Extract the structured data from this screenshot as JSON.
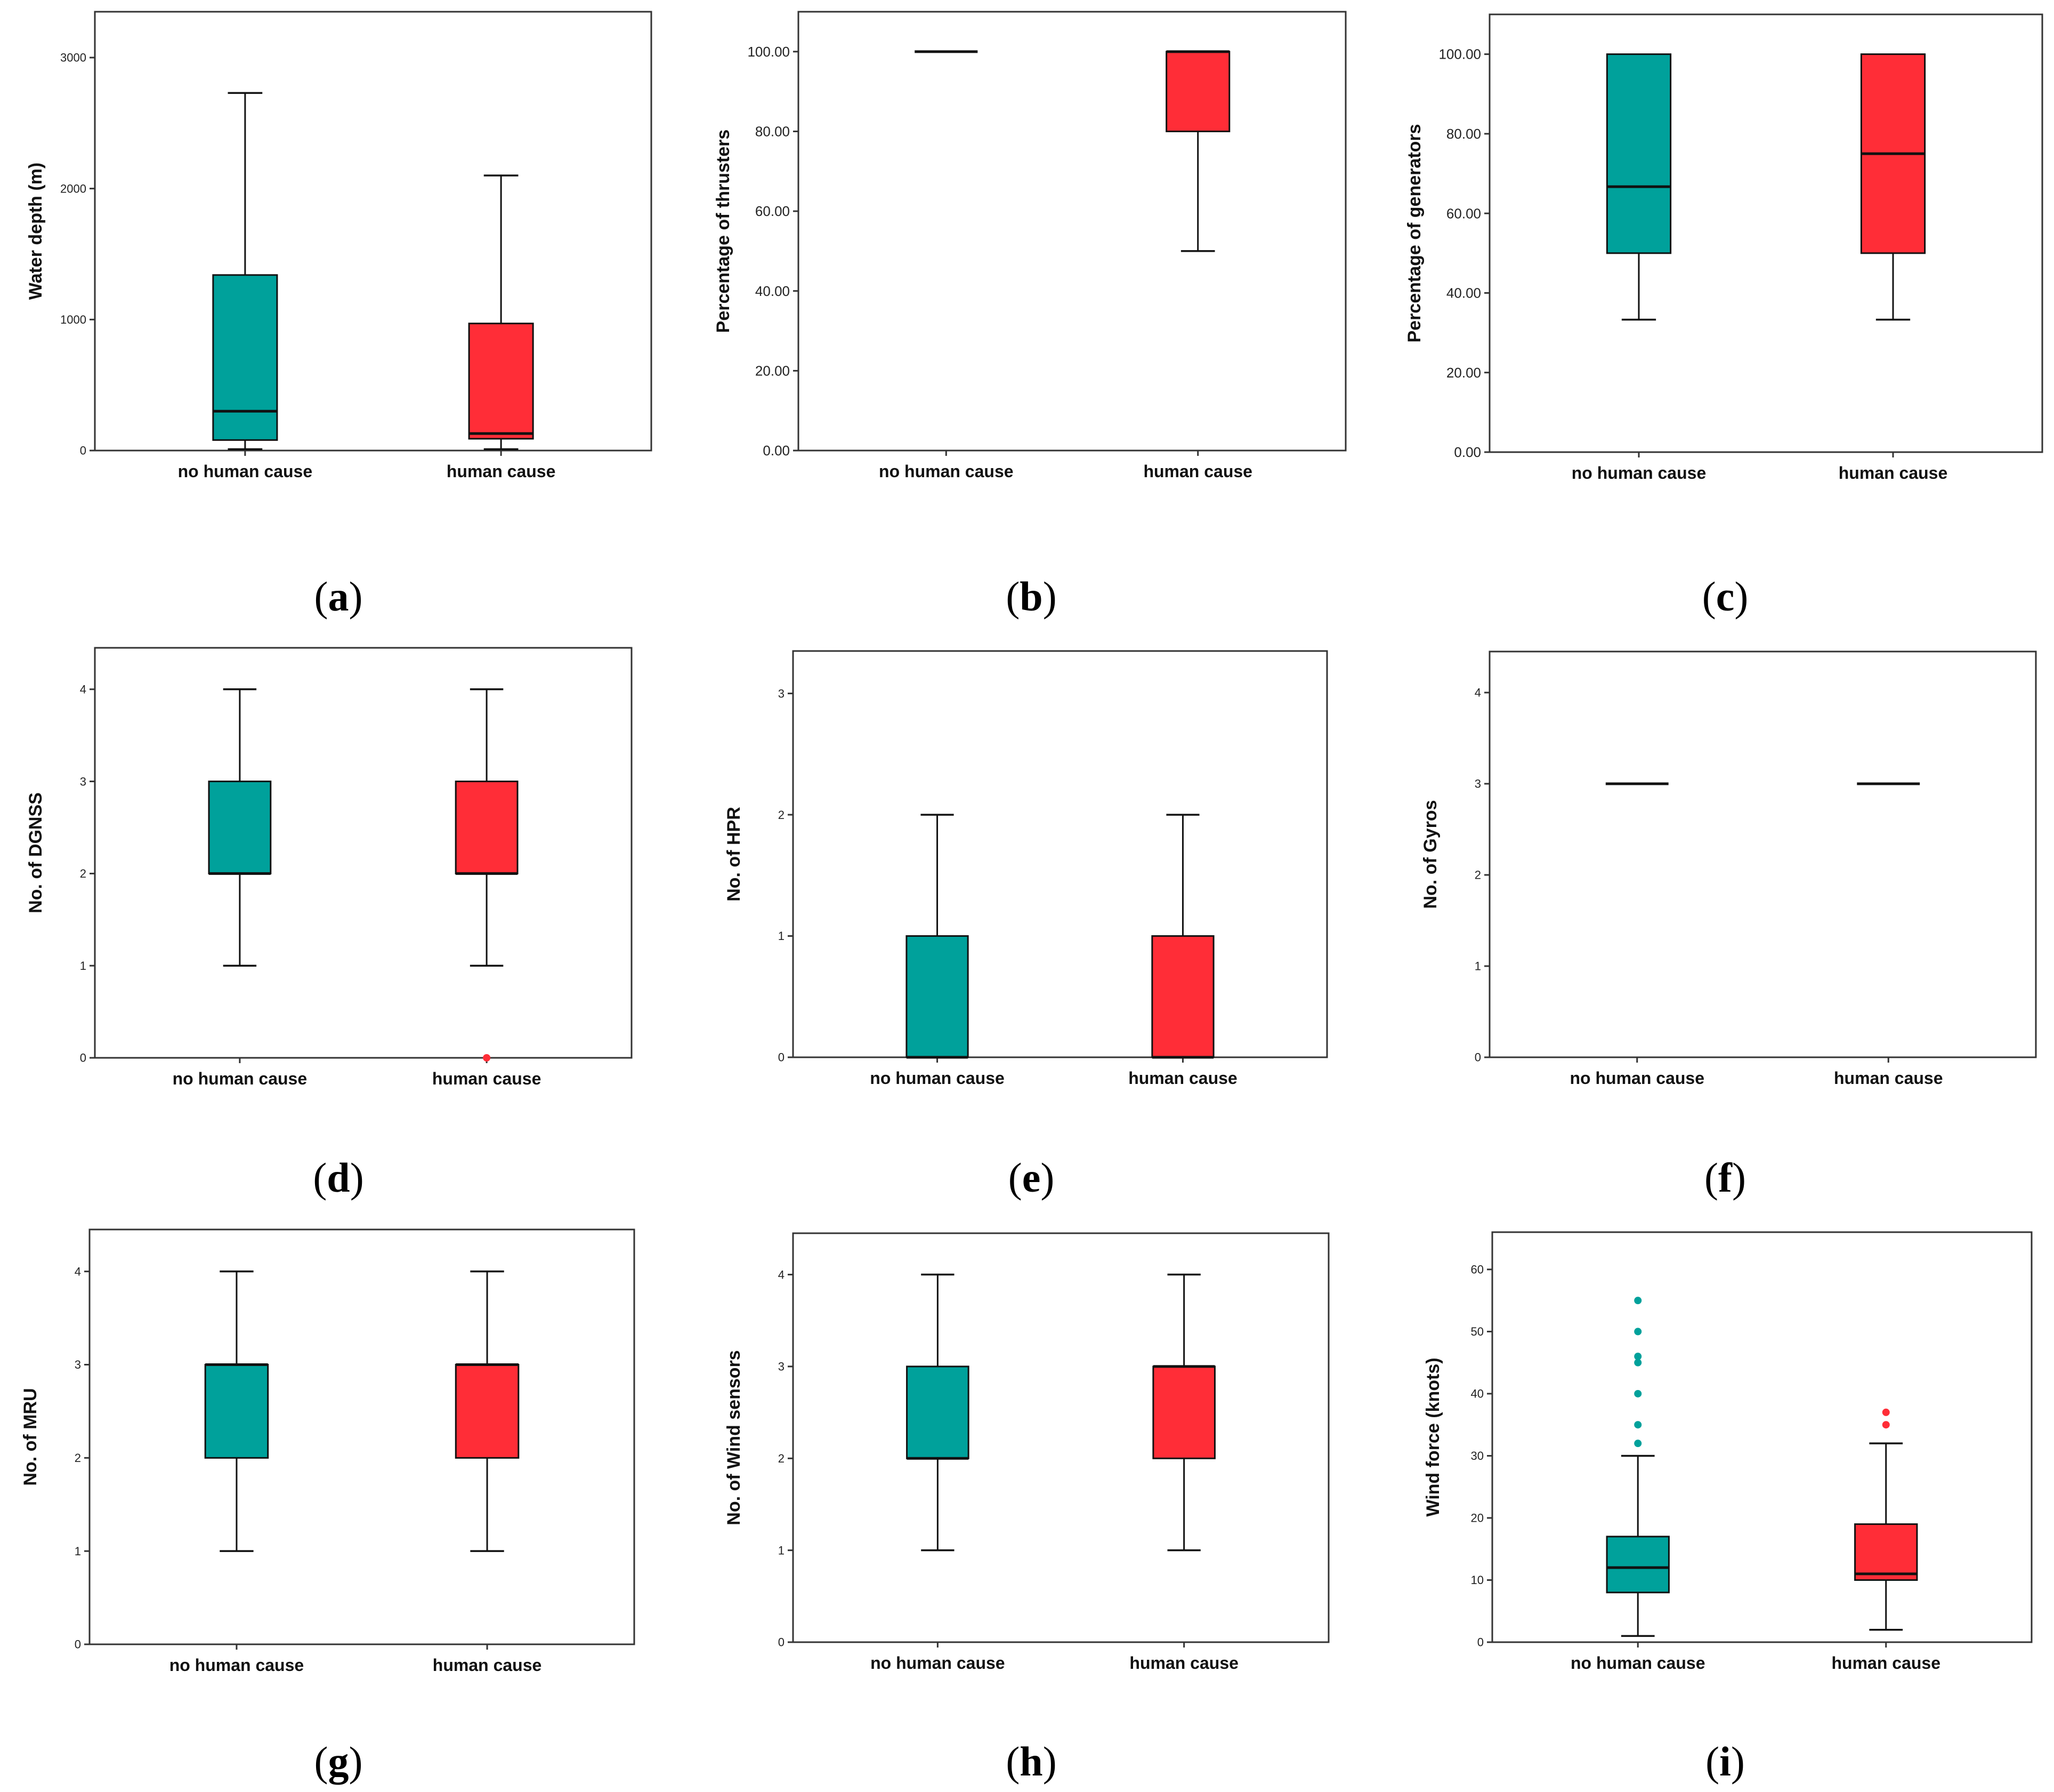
{
  "colors": {
    "no_human": "#00A19B",
    "human": "#FF2D37",
    "frame": "#333333",
    "whisker": "#111111"
  },
  "categories": [
    "no human cause",
    "human cause"
  ],
  "chart_data": [
    {
      "type": "boxplot",
      "letter": "a",
      "ylabel": "Water depth (m)",
      "ylim": [
        0,
        3350
      ],
      "ticks": [
        0,
        1000,
        2000,
        3000
      ],
      "tick_labels": [
        "0",
        "1000",
        "2000",
        "3000"
      ],
      "categories": [
        "no human cause",
        "human cause"
      ],
      "series": [
        {
          "name": "no human cause",
          "min": 10,
          "q1": 80,
          "median": 300,
          "q3": 1340,
          "max": 2730,
          "outliers": []
        },
        {
          "name": "human cause",
          "min": 10,
          "q1": 90,
          "median": 130,
          "q3": 970,
          "max": 2100,
          "outliers": []
        }
      ]
    },
    {
      "type": "boxplot",
      "letter": "b",
      "ylabel": "Percentage of thrusters",
      "ylim": [
        0,
        110
      ],
      "ticks": [
        0,
        20,
        40,
        60,
        80,
        100
      ],
      "tick_labels": [
        "0.00",
        "20.00",
        "40.00",
        "60.00",
        "80.00",
        "100.00"
      ],
      "categories": [
        "no human cause",
        "human cause"
      ],
      "series": [
        {
          "name": "no human cause",
          "min": 100,
          "q1": 100,
          "median": 100,
          "q3": 100,
          "max": 100,
          "outliers": []
        },
        {
          "name": "human cause",
          "min": 50,
          "q1": 80,
          "median": 100,
          "q3": 100,
          "max": 100,
          "outliers": []
        }
      ]
    },
    {
      "type": "boxplot",
      "letter": "c",
      "ylabel": "Percentage of generators",
      "ylim": [
        0,
        110
      ],
      "ticks": [
        0,
        20,
        40,
        60,
        80,
        100
      ],
      "tick_labels": [
        "0.00",
        "20.00",
        "40.00",
        "60.00",
        "80.00",
        "100.00"
      ],
      "categories": [
        "no human cause",
        "human cause"
      ],
      "series": [
        {
          "name": "no human cause",
          "min": 33.3,
          "q1": 50,
          "median": 66.7,
          "q3": 100,
          "max": 100,
          "outliers": []
        },
        {
          "name": "human cause",
          "min": 33.3,
          "q1": 50,
          "median": 75,
          "q3": 100,
          "max": 100,
          "outliers": []
        }
      ]
    },
    {
      "type": "boxplot",
      "letter": "d",
      "ylabel": "No. of DGNSS",
      "ylim": [
        0,
        4.45
      ],
      "ticks": [
        0,
        1,
        2,
        3,
        4
      ],
      "tick_labels": [
        "0",
        "1",
        "2",
        "3",
        "4"
      ],
      "categories": [
        "no human cause",
        "human cause"
      ],
      "series": [
        {
          "name": "no human cause",
          "min": 1,
          "q1": 2,
          "median": 2,
          "q3": 3,
          "max": 4,
          "outliers": []
        },
        {
          "name": "human cause",
          "min": 1,
          "q1": 2,
          "median": 2,
          "q3": 3,
          "max": 4,
          "outliers": [
            0
          ]
        }
      ]
    },
    {
      "type": "boxplot",
      "letter": "e",
      "ylabel": "No. of HPR",
      "ylim": [
        0,
        3.35
      ],
      "ticks": [
        0,
        1,
        2,
        3
      ],
      "tick_labels": [
        "0",
        "1",
        "2",
        "3"
      ],
      "categories": [
        "no human cause",
        "human cause"
      ],
      "series": [
        {
          "name": "no human cause",
          "min": 0,
          "q1": 0,
          "median": 0,
          "q3": 1,
          "max": 2,
          "outliers": []
        },
        {
          "name": "human cause",
          "min": 0,
          "q1": 0,
          "median": 0,
          "q3": 1,
          "max": 2,
          "outliers": []
        }
      ]
    },
    {
      "type": "boxplot",
      "letter": "f",
      "ylabel": "No. of Gyros",
      "ylim": [
        0,
        4.45
      ],
      "ticks": [
        0,
        1,
        2,
        3,
        4
      ],
      "tick_labels": [
        "0",
        "1",
        "2",
        "3",
        "4"
      ],
      "categories": [
        "no human cause",
        "human cause"
      ],
      "series": [
        {
          "name": "no human cause",
          "min": 3,
          "q1": 3,
          "median": 3,
          "q3": 3,
          "max": 3,
          "outliers": []
        },
        {
          "name": "human cause",
          "min": 3,
          "q1": 3,
          "median": 3,
          "q3": 3,
          "max": 3,
          "outliers": []
        }
      ]
    },
    {
      "type": "boxplot",
      "letter": "g",
      "ylabel": "No. of MRU",
      "ylim": [
        0,
        4.45
      ],
      "ticks": [
        0,
        1,
        2,
        3,
        4
      ],
      "tick_labels": [
        "0",
        "1",
        "2",
        "3",
        "4"
      ],
      "categories": [
        "no human cause",
        "human cause"
      ],
      "series": [
        {
          "name": "no human cause",
          "min": 1,
          "q1": 2,
          "median": 3,
          "q3": 3,
          "max": 4,
          "outliers": []
        },
        {
          "name": "human cause",
          "min": 1,
          "q1": 2,
          "median": 3,
          "q3": 3,
          "max": 4,
          "outliers": []
        }
      ]
    },
    {
      "type": "boxplot",
      "letter": "h",
      "ylabel": "No. of Wind sensors",
      "ylim": [
        0,
        4.45
      ],
      "ticks": [
        0,
        1,
        2,
        3,
        4
      ],
      "tick_labels": [
        "0",
        "1",
        "2",
        "3",
        "4"
      ],
      "categories": [
        "no human cause",
        "human cause"
      ],
      "series": [
        {
          "name": "no human cause",
          "min": 1,
          "q1": 2,
          "median": 2,
          "q3": 3,
          "max": 4,
          "outliers": []
        },
        {
          "name": "human cause",
          "min": 1,
          "q1": 2,
          "median": 3,
          "q3": 3,
          "max": 4,
          "outliers": []
        }
      ]
    },
    {
      "type": "boxplot",
      "letter": "i",
      "ylabel": "Wind force (knots)",
      "ylim": [
        0,
        66
      ],
      "ticks": [
        0,
        10,
        20,
        30,
        40,
        50,
        60
      ],
      "tick_labels": [
        "0",
        "10",
        "20",
        "30",
        "40",
        "50",
        "60"
      ],
      "categories": [
        "no human cause",
        "human cause"
      ],
      "series": [
        {
          "name": "no human cause",
          "min": 1,
          "q1": 8,
          "median": 12,
          "q3": 17,
          "max": 30,
          "outliers": [
            32,
            35,
            40,
            45,
            46,
            50,
            55
          ]
        },
        {
          "name": "human cause",
          "min": 2,
          "q1": 10,
          "median": 11,
          "q3": 19,
          "max": 32,
          "outliers": [
            35,
            37
          ]
        }
      ]
    }
  ]
}
